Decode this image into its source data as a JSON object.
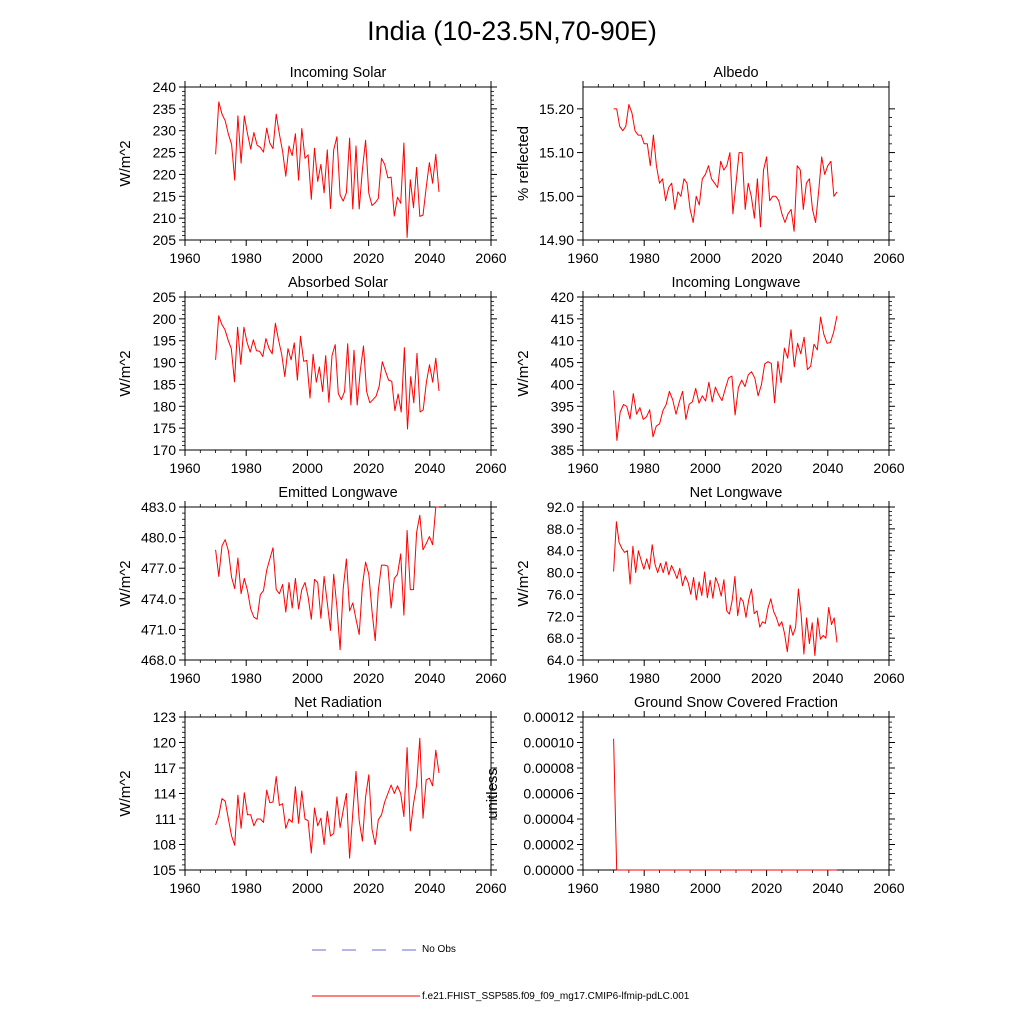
{
  "title": "India (10-23.5N,70-90E)",
  "colors": {
    "model": "#ff0000",
    "obs": "#6b6bd6",
    "axis": "#000000"
  },
  "legend": {
    "obs_label": "No Obs",
    "model_label": "f.e21.FHIST_SSP585.f09_f09_mg17.CMIP6-lfmip-pdLC.001"
  },
  "chart_data": [
    {
      "type": "line",
      "title": "Incoming Solar",
      "ylabel": "W/m^2",
      "xlim": [
        1960,
        2060
      ],
      "ylim": [
        205,
        240
      ],
      "xticks": [
        1960,
        1980,
        2000,
        2020,
        2040,
        2060
      ],
      "yticks": [
        205,
        210,
        215,
        220,
        225,
        230,
        235,
        240
      ],
      "ytick_labels": [
        "205",
        "210",
        "215",
        "220",
        "225",
        "230",
        "235",
        "240"
      ],
      "x_start": 1970,
      "series": [
        {
          "name": "f.e21.FHIST_SSP585.f09_f09_mg17.CMIP6-lfmip-pdLC.001",
          "values": [
            224.6,
            236.6,
            233.8,
            232.3,
            229.2,
            226.9,
            218.7,
            233.4,
            222.6,
            233.4,
            229.3,
            225.8,
            229.6,
            226.7,
            226.2,
            225.1,
            230.6,
            227.2,
            225.9,
            233.8,
            229.2,
            225.3,
            219.6,
            226.5,
            224.3,
            229.3,
            218.7,
            230.5,
            223.7,
            224.5,
            214.3,
            226.0,
            218.4,
            222.3,
            215.8,
            225.6,
            212.2,
            225.6,
            228.6,
            215.3,
            213.9,
            215.8,
            228.3,
            212.1,
            226.5,
            212.1,
            221.1,
            227.8,
            215.7,
            212.9,
            213.5,
            214.5,
            223.7,
            222.3,
            219.2,
            219.4,
            210.5,
            214.8,
            213.4,
            227.2,
            205.6,
            218.8,
            212.4,
            221.6,
            210.4,
            210.7,
            217.0,
            222.7,
            218.0,
            224.6,
            216.0
          ]
        }
      ]
    },
    {
      "type": "line",
      "title": "Albedo",
      "ylabel": "% reflected",
      "xlim": [
        1960,
        2060
      ],
      "ylim": [
        14.9,
        15.25
      ],
      "xticks": [
        1960,
        1980,
        2000,
        2020,
        2040,
        2060
      ],
      "yticks": [
        14.9,
        15.0,
        15.1,
        15.2
      ],
      "ytick_labels": [
        "14.90",
        "15.00",
        "15.10",
        "15.20"
      ],
      "x_start": 1970,
      "series": [
        {
          "name": "f.e21.FHIST_SSP585.f09_f09_mg17.CMIP6-lfmip-pdLC.001",
          "values": [
            15.2,
            15.2,
            15.16,
            15.15,
            15.16,
            15.21,
            15.19,
            15.15,
            15.14,
            15.14,
            15.12,
            15.12,
            15.07,
            15.14,
            15.07,
            15.03,
            15.04,
            14.99,
            15.02,
            15.03,
            14.97,
            15.01,
            15.0,
            15.04,
            15.03,
            14.97,
            14.94,
            15.0,
            14.98,
            15.04,
            15.05,
            15.07,
            15.04,
            15.03,
            15.02,
            15.08,
            15.06,
            15.07,
            15.1,
            14.96,
            15.03,
            15.1,
            15.1,
            14.97,
            15.03,
            15.0,
            14.95,
            15.04,
            14.93,
            15.06,
            15.09,
            14.99,
            15.0,
            15.0,
            14.99,
            14.96,
            14.94,
            14.96,
            14.97,
            14.92,
            15.07,
            15.06,
            14.97,
            15.03,
            15.04,
            14.97,
            14.94,
            15.01,
            15.09,
            15.05,
            15.07,
            15.08,
            15.0,
            15.01
          ]
        }
      ]
    },
    {
      "type": "line",
      "title": "Absorbed Solar",
      "ylabel": "W/m^2",
      "xlim": [
        1960,
        2060
      ],
      "ylim": [
        170,
        205
      ],
      "xticks": [
        1960,
        1980,
        2000,
        2020,
        2040,
        2060
      ],
      "yticks": [
        170,
        175,
        180,
        185,
        190,
        195,
        200,
        205
      ],
      "ytick_labels": [
        "170",
        "175",
        "180",
        "185",
        "190",
        "195",
        "200",
        "205"
      ],
      "x_start": 1970,
      "series": [
        {
          "name": "f.e21.FHIST_SSP585.f09_f09_mg17.CMIP6-lfmip-pdLC.001",
          "values": [
            190.6,
            200.7,
            198.7,
            197.5,
            195.1,
            193.2,
            185.6,
            198.1,
            189.6,
            198.1,
            194.6,
            192.4,
            195.2,
            192.7,
            192.6,
            191.4,
            195.5,
            193.2,
            192.0,
            199.0,
            195.2,
            191.9,
            186.8,
            193.2,
            190.6,
            194.5,
            186.0,
            196.0,
            190.3,
            190.5,
            181.9,
            191.9,
            185.5,
            189.0,
            183.4,
            191.6,
            180.9,
            191.6,
            194.1,
            182.9,
            181.5,
            183.4,
            194.3,
            180.3,
            192.8,
            180.3,
            188.2,
            193.8,
            183.4,
            180.8,
            181.5,
            182.3,
            184.6,
            190.2,
            188.0,
            186.0,
            185.7,
            179.0,
            182.8,
            178.7,
            193.4,
            174.8,
            186.8,
            180.8,
            192.1,
            178.7,
            179.2,
            185.5,
            189.5,
            185.5,
            191.0,
            183.5
          ]
        }
      ]
    },
    {
      "type": "line",
      "title": "Incoming Longwave",
      "ylabel": "W/m^2",
      "xlim": [
        1960,
        2060
      ],
      "ylim": [
        385,
        420
      ],
      "xticks": [
        1960,
        1980,
        2000,
        2020,
        2040,
        2060
      ],
      "yticks": [
        385,
        390,
        395,
        400,
        405,
        410,
        415,
        420
      ],
      "ytick_labels": [
        "385",
        "390",
        "395",
        "400",
        "405",
        "410",
        "415",
        "420"
      ],
      "x_start": 1970,
      "series": [
        {
          "name": "f.e21.FHIST_SSP585.f09_f09_mg17.CMIP6-lfmip-pdLC.001",
          "values": [
            398.6,
            387.2,
            393.7,
            395.4,
            395.0,
            392.1,
            397.9,
            393.2,
            394.7,
            392.0,
            392.6,
            394.2,
            388.0,
            390.5,
            391.0,
            394.0,
            395.4,
            398.4,
            396.5,
            393.2,
            396.0,
            398.4,
            392.0,
            395.5,
            396.0,
            399.1,
            395.7,
            397.4,
            396.2,
            400.5,
            396.0,
            399.4,
            397.6,
            396.3,
            399.0,
            401.5,
            401.9,
            393.0,
            399.3,
            401.0,
            399.5,
            402.2,
            402.9,
            401.4,
            397.4,
            399.9,
            404.7,
            405.2,
            404.8,
            395.8,
            405.3,
            400.4,
            408.3,
            406.0,
            412.5,
            404.0,
            409.4,
            407.0,
            410.8,
            403.4,
            404.2,
            409.2,
            407.9,
            415.4,
            411.5,
            409.4,
            409.6,
            412.0,
            415.7
          ]
        }
      ]
    },
    {
      "type": "line",
      "title": "Emitted Longwave",
      "ylabel": "W/m^2",
      "xlim": [
        1960,
        2060
      ],
      "ylim": [
        468,
        483
      ],
      "xticks": [
        1960,
        1980,
        2000,
        2020,
        2040,
        2060
      ],
      "yticks": [
        468,
        471,
        474,
        477,
        480,
        483
      ],
      "ytick_labels": [
        "468.0",
        "471.0",
        "474.0",
        "477.0",
        "480.0",
        "483.0"
      ],
      "x_start": 1970,
      "series": [
        {
          "name": "f.e21.FHIST_SSP585.f09_f09_mg17.CMIP6-lfmip-pdLC.001",
          "values": [
            478.8,
            476.2,
            479.2,
            479.8,
            478.7,
            476.1,
            475.0,
            478.0,
            474.5,
            476.0,
            474.8,
            473.0,
            472.2,
            472.0,
            474.4,
            474.8,
            476.8,
            477.9,
            479.0,
            474.9,
            474.5,
            475.4,
            472.7,
            475.6,
            473.1,
            476.0,
            473.0,
            474.9,
            475.6,
            474.2,
            472.0,
            475.9,
            475.6,
            472.1,
            476.2,
            473.6,
            470.9,
            476.4,
            473.2,
            469.0,
            475.0,
            477.9,
            472.8,
            473.6,
            472.0,
            470.5,
            475.3,
            477.6,
            476.4,
            472.8,
            469.9,
            474.8,
            477.3,
            477.3,
            477.2,
            473.1,
            476.0,
            476.4,
            478.4,
            472.4,
            480.7,
            474.9,
            474.9,
            480.5,
            482.2,
            478.8,
            479.4,
            480.1,
            479.3,
            483.0,
            483.0
          ]
        }
      ]
    },
    {
      "type": "line",
      "title": "Net Longwave",
      "ylabel": "W/m^2",
      "xlim": [
        1960,
        2060
      ],
      "ylim": [
        64,
        92
      ],
      "xticks": [
        1960,
        1980,
        2000,
        2020,
        2040,
        2060
      ],
      "yticks": [
        64,
        68,
        72,
        76,
        80,
        84,
        88,
        92
      ],
      "ytick_labels": [
        "64.0",
        "68.0",
        "72.0",
        "76.0",
        "80.0",
        "84.0",
        "88.0",
        "92.0"
      ],
      "x_start": 1970,
      "series": [
        {
          "name": "f.e21.FHIST_SSP585.f09_f09_mg17.CMIP6-lfmip-pdLC.001",
          "values": [
            80.2,
            89.3,
            85.5,
            84.4,
            83.7,
            84.0,
            77.9,
            84.8,
            80.0,
            84.0,
            82.2,
            80.6,
            82.5,
            80.6,
            85.1,
            81.5,
            80.0,
            81.7,
            80.0,
            82.0,
            79.6,
            81.3,
            80.2,
            78.9,
            80.8,
            77.6,
            79.4,
            78.2,
            76.0,
            79.1,
            75.0,
            78.3,
            75.8,
            80.1,
            75.4,
            78.6,
            75.3,
            79.1,
            77.8,
            75.7,
            78.7,
            73.0,
            72.4,
            74.9,
            79.3,
            72.1,
            75.4,
            74.7,
            71.8,
            75.0,
            77.0,
            72.5,
            73.0,
            70.0,
            71.0,
            70.7,
            73.5,
            75.2,
            72.9,
            71.8,
            70.2,
            71.0,
            68.8,
            65.5,
            70.4,
            68.5,
            70.0,
            77.0,
            72.4,
            65.1,
            71.7,
            67.0,
            70.8,
            64.8,
            71.7,
            67.8,
            68.5,
            68.0,
            73.6,
            70.5,
            71.7,
            67.2
          ]
        }
      ]
    },
    {
      "type": "line",
      "title": "Net Radiation",
      "ylabel": "W/m^2",
      "xlim": [
        1960,
        2060
      ],
      "ylim": [
        105,
        123
      ],
      "xticks": [
        1960,
        1980,
        2000,
        2020,
        2040,
        2060
      ],
      "yticks": [
        105,
        108,
        111,
        114,
        117,
        120,
        123
      ],
      "ytick_labels": [
        "105",
        "108",
        "111",
        "114",
        "117",
        "120",
        "123"
      ],
      "x_start": 1970,
      "series": [
        {
          "name": "f.e21.FHIST_SSP585.f09_f09_mg17.CMIP6-lfmip-pdLC.001",
          "values": [
            110.3,
            111.4,
            113.4,
            113.1,
            111.0,
            109.0,
            107.9,
            113.8,
            109.9,
            114.1,
            111.5,
            111.5,
            110.2,
            111.0,
            111.0,
            110.6,
            114.4,
            112.9,
            113.0,
            116.0,
            112.6,
            112.8,
            109.9,
            111.0,
            110.6,
            114.8,
            110.5,
            114.3,
            111.0,
            110.8,
            107.0,
            112.3,
            110.2,
            111.1,
            108.0,
            111.9,
            109.0,
            109.3,
            113.6,
            110.0,
            112.0,
            114.0,
            106.4,
            111.7,
            116.6,
            110.8,
            108.4,
            113.6,
            116.2,
            109.8,
            108.0,
            110.9,
            111.5,
            113.0,
            114.0,
            115.0,
            114.0,
            114.9,
            114.0,
            111.3,
            119.4,
            109.6,
            112.8,
            115.0,
            120.5,
            111.1,
            115.6,
            115.8,
            114.9,
            119.1,
            116.4
          ]
        }
      ]
    },
    {
      "type": "line",
      "title": "Ground Snow Covered Fraction",
      "ylabel": "unitless",
      "xlim": [
        1960,
        2060
      ],
      "ylim": [
        0,
        0.00012
      ],
      "xticks": [
        1960,
        1980,
        2000,
        2020,
        2040,
        2060
      ],
      "yticks": [
        0,
        2e-05,
        4e-05,
        6e-05,
        8e-05,
        0.0001,
        0.00012
      ],
      "ytick_labels": [
        "0.00000",
        "0.00002",
        "0.00004",
        "0.00006",
        "0.00008",
        "0.00010",
        "0.00012"
      ],
      "x_start": 1970,
      "x_end": 2043,
      "series": [
        {
          "name": "f.e21.FHIST_SSP585.f09_f09_mg17.CMIP6-lfmip-pdLC.001",
          "x": [
            1970,
            1971,
            2043
          ],
          "values": [
            0.000103,
            0.0,
            0.0
          ]
        }
      ]
    }
  ]
}
